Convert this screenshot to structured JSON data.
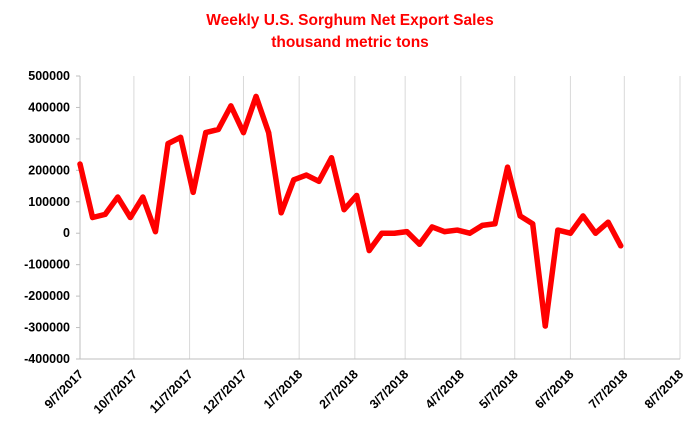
{
  "chart_data": {
    "type": "line",
    "title": "Weekly U.S. Sorghum Net Export Sales",
    "subtitle": "thousand metric tons",
    "xlabel": "",
    "ylabel": "",
    "x_tick_labels": [
      "9/7/2017",
      "10/7/2017",
      "11/7/2017",
      "12/7/2017",
      "1/7/2018",
      "2/7/2018",
      "3/7/2018",
      "4/7/2018",
      "5/7/2018",
      "6/7/2018",
      "7/7/2018",
      "8/7/2018"
    ],
    "y_tick_labels": [
      "500000",
      "400000",
      "300000",
      "200000",
      "100000",
      "0",
      "-100000",
      "-200000",
      "-300000",
      "-400000"
    ],
    "xlim": [
      "2017-09-07",
      "2018-08-07"
    ],
    "ylim": [
      -400000,
      500000
    ],
    "grid": {
      "x": true,
      "y": false
    },
    "series": [
      {
        "color": "#ff0000",
        "points": [
          [
            "2017-09-07",
            220000
          ],
          [
            "2017-09-14",
            50000
          ],
          [
            "2017-09-21",
            60000
          ],
          [
            "2017-09-28",
            115000
          ],
          [
            "2017-10-05",
            50000
          ],
          [
            "2017-10-12",
            115000
          ],
          [
            "2017-10-19",
            5000
          ],
          [
            "2017-10-26",
            285000
          ],
          [
            "2017-11-02",
            305000
          ],
          [
            "2017-11-09",
            130000
          ],
          [
            "2017-11-16",
            320000
          ],
          [
            "2017-11-23",
            330000
          ],
          [
            "2017-11-30",
            405000
          ],
          [
            "2017-12-07",
            320000
          ],
          [
            "2017-12-14",
            435000
          ],
          [
            "2017-12-21",
            320000
          ],
          [
            "2017-12-28",
            65000
          ],
          [
            "2018-01-04",
            170000
          ],
          [
            "2018-01-11",
            185000
          ],
          [
            "2018-01-18",
            165000
          ],
          [
            "2018-01-25",
            240000
          ],
          [
            "2018-02-01",
            75000
          ],
          [
            "2018-02-08",
            120000
          ],
          [
            "2018-02-15",
            -55000
          ],
          [
            "2018-02-22",
            0
          ],
          [
            "2018-03-01",
            0
          ],
          [
            "2018-03-08",
            5000
          ],
          [
            "2018-03-15",
            -35000
          ],
          [
            "2018-03-22",
            20000
          ],
          [
            "2018-03-29",
            5000
          ],
          [
            "2018-04-05",
            10000
          ],
          [
            "2018-04-12",
            0
          ],
          [
            "2018-04-19",
            25000
          ],
          [
            "2018-04-26",
            30000
          ],
          [
            "2018-05-03",
            210000
          ],
          [
            "2018-05-10",
            55000
          ],
          [
            "2018-05-17",
            30000
          ],
          [
            "2018-05-24",
            -295000
          ],
          [
            "2018-05-31",
            10000
          ],
          [
            "2018-06-07",
            0
          ],
          [
            "2018-06-14",
            55000
          ],
          [
            "2018-06-21",
            0
          ],
          [
            "2018-06-28",
            35000
          ],
          [
            "2018-07-05",
            -40000
          ]
        ]
      }
    ]
  }
}
